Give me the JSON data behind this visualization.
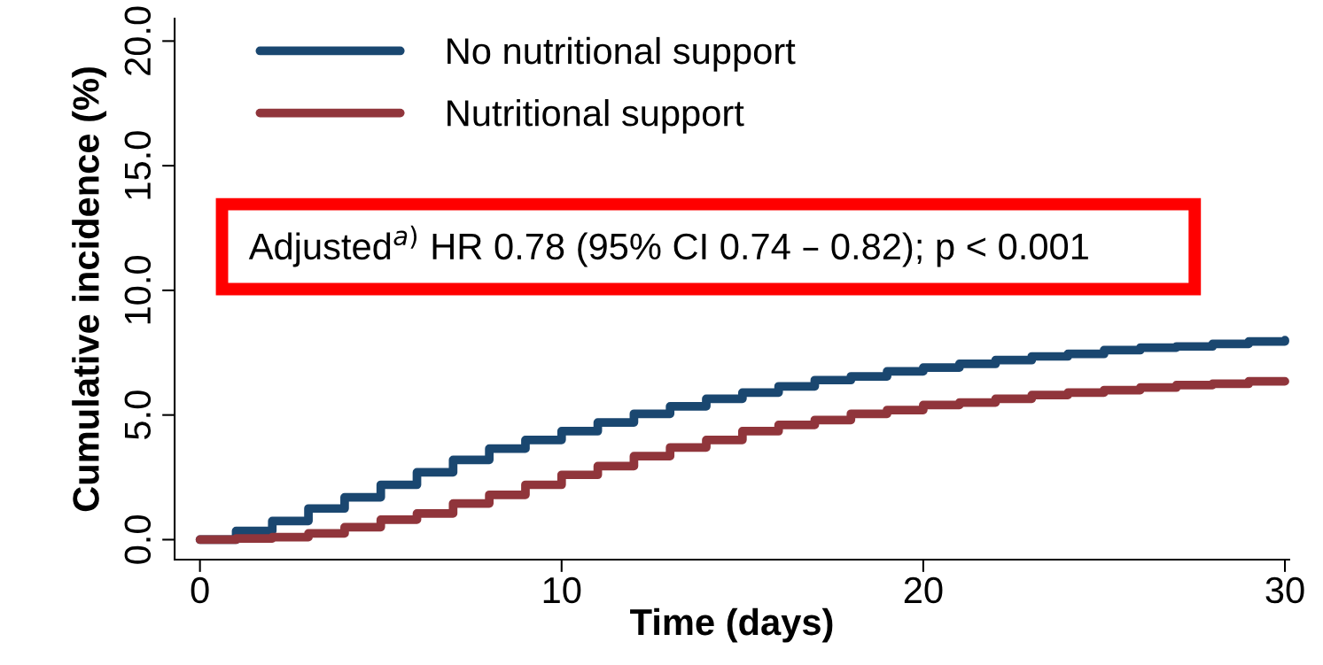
{
  "chart_data": {
    "type": "step",
    "xlabel": "Time (days)",
    "ylabel": "Cumulative incidence (%)",
    "x": [
      0,
      1,
      2,
      3,
      4,
      5,
      6,
      7,
      8,
      9,
      10,
      11,
      12,
      13,
      14,
      15,
      16,
      17,
      18,
      19,
      20,
      21,
      22,
      23,
      24,
      25,
      26,
      27,
      28,
      29,
      30
    ],
    "series": [
      {
        "name": "No nutritional support",
        "color": "#1a4770",
        "values": [
          0,
          0.35,
          0.75,
          1.25,
          1.7,
          2.2,
          2.7,
          3.2,
          3.65,
          4.0,
          4.35,
          4.7,
          5.05,
          5.35,
          5.65,
          5.9,
          6.15,
          6.4,
          6.55,
          6.75,
          6.9,
          7.05,
          7.2,
          7.35,
          7.45,
          7.6,
          7.7,
          7.75,
          7.85,
          7.95,
          8.0
        ]
      },
      {
        "name": "Nutritional support",
        "color": "#90353b",
        "values": [
          0,
          0.05,
          0.1,
          0.25,
          0.5,
          0.8,
          1.05,
          1.45,
          1.8,
          2.2,
          2.6,
          2.95,
          3.35,
          3.7,
          4.0,
          4.35,
          4.6,
          4.8,
          5.05,
          5.2,
          5.4,
          5.5,
          5.65,
          5.8,
          5.9,
          6.0,
          6.1,
          6.2,
          6.25,
          6.35,
          6.35
        ]
      }
    ],
    "annotations": [
      "Adjusted$^{a)}$ HR 0.78 (95% CI 0.74 – 0.82); p < 0.001"
    ],
    "xlim": [
      -0.7,
      30.12
    ],
    "xticks": [
      0,
      10,
      20,
      30
    ],
    "ylim": [
      -0.8,
      20.9
    ],
    "yticks": [
      {
        "value": 0,
        "label": "0.0"
      },
      {
        "value": 5,
        "label": "5.0"
      },
      {
        "value": 10,
        "label": "10.0"
      },
      {
        "value": 15,
        "label": "15.0"
      },
      {
        "value": 20,
        "label": "20.0"
      }
    ],
    "grid": false,
    "legend": "top left",
    "line_style": "solid"
  }
}
